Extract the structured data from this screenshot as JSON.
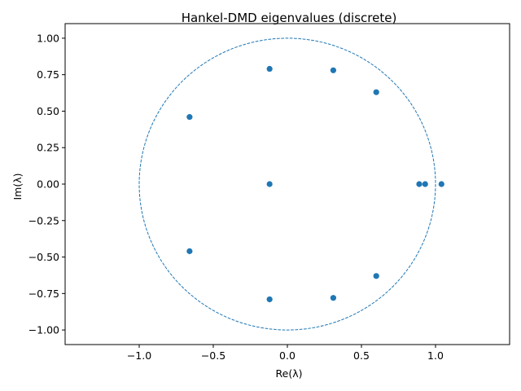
{
  "chart_data": {
    "type": "scatter",
    "title": "Hankel-DMD eigenvalues (discrete)",
    "xlabel": "Re(λ)",
    "ylabel": "Im(λ)",
    "xlim": [
      -1.5,
      1.5
    ],
    "ylim": [
      -1.1,
      1.1
    ],
    "grid": false,
    "x_ticks": [
      "−1.0",
      "−0.5",
      "0.0",
      "0.5",
      "1.0"
    ],
    "y_ticks": [
      "−1.00",
      "−0.75",
      "−0.50",
      "−0.25",
      "0.00",
      "0.25",
      "0.50",
      "0.75",
      "1.00"
    ],
    "x_tick_values": [
      -1.0,
      -0.5,
      0.0,
      0.5,
      1.0
    ],
    "y_tick_values": [
      -1.0,
      -0.75,
      -0.5,
      -0.25,
      0.0,
      0.25,
      0.5,
      0.75,
      1.0
    ],
    "unit_circle": {
      "radius": 1.0,
      "style": "dashed",
      "color": "#1f77b4"
    },
    "marker_color": "#1f77b4",
    "points": [
      {
        "x": -0.12,
        "y": 0.79
      },
      {
        "x": 0.31,
        "y": 0.78
      },
      {
        "x": 0.6,
        "y": 0.63
      },
      {
        "x": -0.66,
        "y": 0.46
      },
      {
        "x": -0.12,
        "y": 0.0
      },
      {
        "x": 0.89,
        "y": 0.0
      },
      {
        "x": 0.93,
        "y": 0.0
      },
      {
        "x": 1.04,
        "y": 0.0
      },
      {
        "x": -0.66,
        "y": -0.46
      },
      {
        "x": 0.6,
        "y": -0.63
      },
      {
        "x": -0.12,
        "y": -0.79
      },
      {
        "x": 0.31,
        "y": -0.78
      }
    ]
  }
}
